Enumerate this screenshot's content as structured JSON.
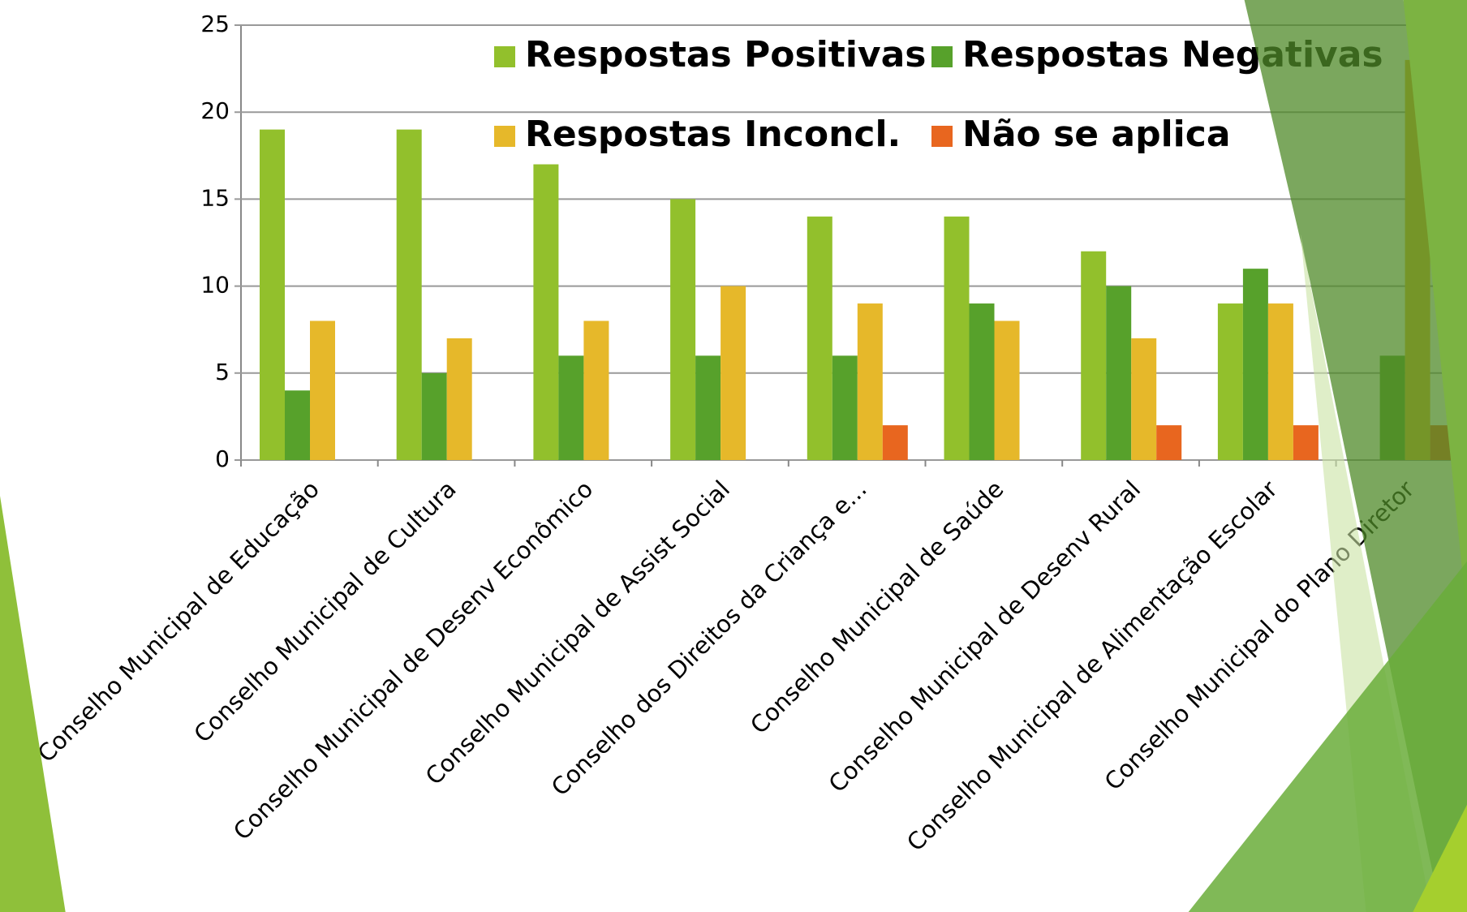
{
  "chart_data": {
    "type": "bar",
    "categories": [
      "Conselho Municipal de Educação",
      "Conselho Municipal de Cultura",
      "Conselho Municipal de Desenv Econômico",
      "Conselho Municipal de Assist Social",
      "Conselho dos Direitos da Criança e...",
      "Conselho Municipal de Saúde",
      "Conselho Municipal de Desenv Rural",
      "Conselho Municipal de Alimentação Escolar",
      "Conselho Municipal do Plano Diretor"
    ],
    "series": [
      {
        "name": "Respostas Positivas",
        "color": "#92c02c",
        "values": [
          19,
          19,
          17,
          15,
          14,
          14,
          12,
          9,
          0
        ]
      },
      {
        "name": "Respostas Negativas",
        "color": "#57a12b",
        "values": [
          4,
          5,
          6,
          6,
          6,
          9,
          10,
          11,
          6
        ]
      },
      {
        "name": "Respostas Inconcl.",
        "color": "#e6b82a",
        "values": [
          8,
          7,
          8,
          10,
          9,
          8,
          7,
          9,
          23
        ]
      },
      {
        "name": "Não se aplica",
        "color": "#e8661f",
        "values": [
          0,
          0,
          0,
          0,
          2,
          0,
          2,
          2,
          2
        ]
      }
    ],
    "ylim": [
      0,
      25
    ],
    "yticks": [
      0,
      5,
      10,
      15,
      20,
      25
    ],
    "grid": true
  }
}
